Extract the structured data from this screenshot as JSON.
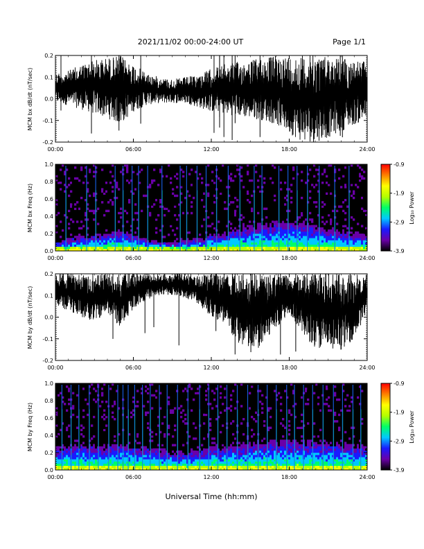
{
  "header": {
    "title": "2021/11/02  00:00-24:00 UT",
    "page": "Page 1/1"
  },
  "footer": {
    "xlabel": "Universal Time (hh:mm)"
  },
  "colorbar": {
    "label": "Log₁₀ Power",
    "ticks": [
      "-0.9",
      "-1.9",
      "-2.9",
      "-3.9"
    ],
    "colors": [
      "#000000",
      "#6a00a8",
      "#1a1aff",
      "#00c8ff",
      "#00ff66",
      "#b4ff00",
      "#ffff00",
      "#ff8000",
      "#ff0000"
    ]
  },
  "chart_data": [
    {
      "type": "line",
      "ylabel": "MCM bx dB/dt (nT/sec)",
      "xlim": [
        0,
        24
      ],
      "ylim": [
        -0.2,
        0.2
      ],
      "x_ticks": [
        "00:00",
        "06:00",
        "12:00",
        "18:00",
        "24:00"
      ],
      "y_ticks": [
        "0.2",
        "0.1",
        "0.0",
        "-0.1",
        "-0.2"
      ],
      "series": [
        {
          "x": [
            0,
            1,
            2,
            3,
            4,
            5,
            6,
            7,
            8,
            9,
            10,
            11,
            12,
            13,
            14,
            15,
            16,
            17,
            18,
            19,
            20,
            21,
            22,
            23,
            24
          ],
          "upper": [
            0.12,
            0.13,
            0.16,
            0.18,
            0.19,
            0.2,
            0.16,
            0.12,
            0.1,
            0.09,
            0.1,
            0.11,
            0.14,
            0.16,
            0.17,
            0.18,
            0.19,
            0.2,
            0.2,
            0.2,
            0.2,
            0.2,
            0.19,
            0.18,
            0.17
          ],
          "lower": [
            -0.02,
            -0.03,
            -0.05,
            -0.07,
            -0.09,
            -0.12,
            -0.06,
            -0.03,
            -0.02,
            -0.02,
            -0.02,
            -0.04,
            -0.06,
            -0.07,
            -0.08,
            -0.09,
            -0.1,
            -0.12,
            -0.16,
            -0.2,
            -0.2,
            -0.18,
            -0.15,
            -0.12,
            -0.1
          ]
        }
      ]
    },
    {
      "type": "heatmap",
      "ylabel": "MCM bx Freq (Hz)",
      "xlim": [
        0,
        24
      ],
      "ylim": [
        0.0,
        1.0
      ],
      "zlim": [
        -3.9,
        -0.9
      ],
      "x_ticks": [
        "00:00",
        "06:00",
        "12:00",
        "18:00",
        "24:00"
      ],
      "y_ticks": [
        "1.0",
        "0.8",
        "0.6",
        "0.4",
        "0.2",
        "0.0"
      ],
      "activity_height": [
        0.12,
        0.15,
        0.18,
        0.2,
        0.22,
        0.25,
        0.2,
        0.15,
        0.12,
        0.1,
        0.12,
        0.15,
        0.2,
        0.22,
        0.28,
        0.3,
        0.33,
        0.35,
        0.38,
        0.35,
        0.3,
        0.28,
        0.25,
        0.22,
        0.2
      ],
      "event_times": [
        0.8,
        2.4,
        3.1,
        4.6,
        5.2,
        5.9,
        6.4,
        7.1,
        8.2,
        9.6,
        10.1,
        10.9,
        11.6,
        12.4,
        13.3,
        14.2,
        15.3,
        15.9,
        17.2,
        17.9,
        18.6,
        19.4,
        20.3,
        21.5,
        22.6
      ]
    },
    {
      "type": "line",
      "ylabel": "MCM by dB/dt (nT/sec)",
      "xlim": [
        0,
        24
      ],
      "ylim": [
        -0.2,
        0.2
      ],
      "x_ticks": [
        "00:00",
        "06:00",
        "12:00",
        "18:00",
        "24:00"
      ],
      "y_ticks": [
        "0.2",
        "0.1",
        "0.0",
        "-0.1",
        "-0.2"
      ],
      "series": [
        {
          "x": [
            0,
            1,
            2,
            3,
            4,
            5,
            6,
            7,
            8,
            9,
            10,
            11,
            12,
            13,
            14,
            15,
            16,
            17,
            18,
            19,
            20,
            21,
            22,
            23,
            24
          ],
          "upper": [
            0.2,
            0.2,
            0.2,
            0.2,
            0.2,
            0.2,
            0.2,
            0.2,
            0.2,
            0.2,
            0.2,
            0.2,
            0.2,
            0.2,
            0.2,
            0.2,
            0.2,
            0.2,
            0.2,
            0.2,
            0.2,
            0.2,
            0.2,
            0.2,
            0.2
          ],
          "lower": [
            0.05,
            0.03,
            0.0,
            -0.02,
            0.02,
            -0.05,
            0.04,
            0.08,
            0.1,
            0.1,
            0.09,
            0.06,
            0.0,
            -0.05,
            -0.12,
            -0.16,
            -0.14,
            -0.05,
            0.02,
            -0.08,
            -0.14,
            -0.16,
            -0.15,
            -0.1,
            0.02
          ]
        }
      ]
    },
    {
      "type": "heatmap",
      "ylabel": "MCM by Freq (Hz)",
      "xlim": [
        0,
        24
      ],
      "ylim": [
        0.0,
        1.0
      ],
      "zlim": [
        -3.9,
        -0.9
      ],
      "x_ticks": [
        "00:00",
        "06:00",
        "12:00",
        "18:00",
        "24:00"
      ],
      "y_ticks": [
        "1.0",
        "0.8",
        "0.6",
        "0.4",
        "0.2",
        "0.0"
      ],
      "activity_height": [
        0.28,
        0.3,
        0.32,
        0.3,
        0.3,
        0.33,
        0.3,
        0.28,
        0.25,
        0.22,
        0.22,
        0.24,
        0.28,
        0.3,
        0.32,
        0.33,
        0.35,
        0.35,
        0.36,
        0.35,
        0.34,
        0.33,
        0.32,
        0.3,
        0.28
      ],
      "event_times": [
        0.5,
        1.2,
        1.8,
        2.6,
        3.3,
        4.1,
        4.8,
        5.2,
        5.6,
        6.1,
        6.7,
        7.3,
        8.0,
        8.6,
        9.4,
        10.2,
        11.1,
        11.8,
        12.5,
        13.2,
        14.0,
        14.8,
        15.6,
        16.3,
        17.0,
        17.8,
        18.4,
        19.1,
        19.8,
        20.6,
        21.4,
        22.1,
        22.9,
        23.5
      ]
    }
  ]
}
